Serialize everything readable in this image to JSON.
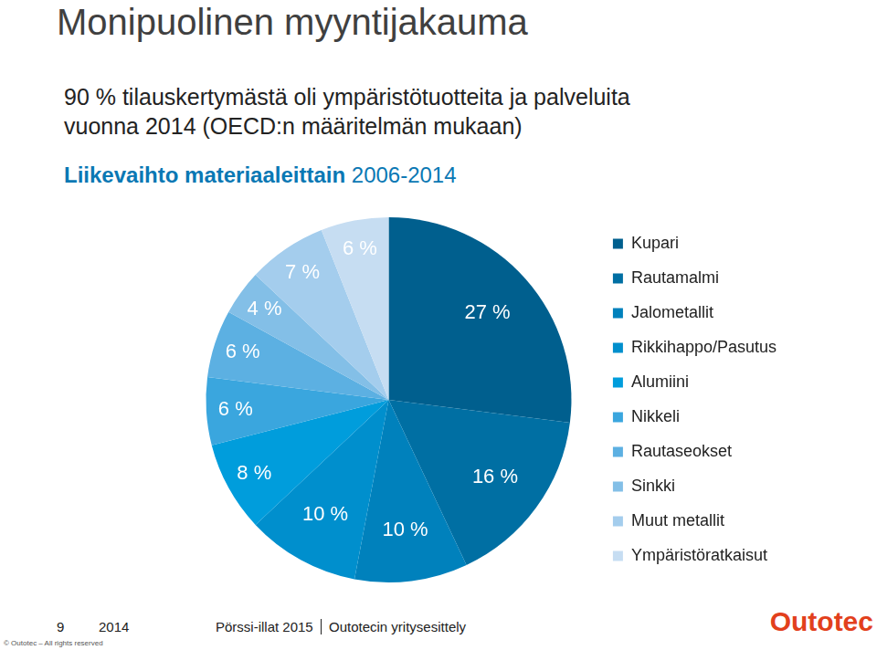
{
  "title": "Monipuolinen myyntijakauma",
  "note": [
    "90 % tilauskertymästä oli ympäristötuotteita ja palveluita",
    "vuonna 2014 (OECD:n määritelmän mukaan)"
  ],
  "chart_data": {
    "type": "pie",
    "title": "Liikevaihto materiaaleittain 2006-2014",
    "categories": [
      "Kupari",
      "Rautamalmi",
      "Jalometallit",
      "Rikkihappo/Pasutus",
      "Alumiini",
      "Nikkeli",
      "Rautaseokset",
      "Sinkki",
      "Muut metallit",
      "Ympäristöratkaisut"
    ],
    "values": [
      27,
      16,
      10,
      10,
      8,
      6,
      6,
      4,
      7,
      6
    ],
    "value_labels": [
      "27 %",
      "16 %",
      "10 %",
      "10 %",
      "8 %",
      "6 %",
      "6 %",
      "4 %",
      "7 %",
      "6 %"
    ],
    "colors": [
      "#005f8e",
      "#006fa3",
      "#0081bc",
      "#008fcd",
      "#009ddc",
      "#3aa6de",
      "#5cb0e2",
      "#83bfe7",
      "#a4cded",
      "#c6ddf2"
    ],
    "legend": "right",
    "data_labels": true
  },
  "footer": {
    "page": "9",
    "year": "2014",
    "event": "Pörssi-illat 2015",
    "description": "Outotecin yritysesittely",
    "copyright": "© Outotec – All rights reserved",
    "logo": "Outotec"
  }
}
